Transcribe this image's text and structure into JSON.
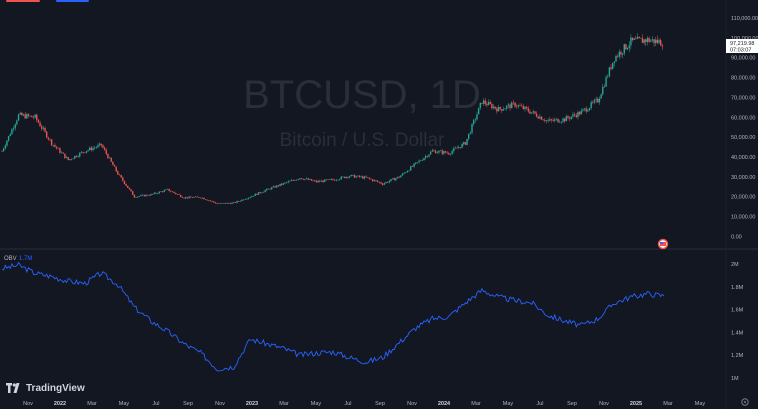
{
  "colors": {
    "background": "#131722",
    "grid": "#1e2230",
    "candle_up": "#26a69a",
    "candle_down": "#ef5350",
    "obv_line": "#2962ff",
    "axis_text": "#b2b5be",
    "watermark": "#2a2e39"
  },
  "watermark": {
    "symbol": "BTCUSD, 1D",
    "description": "Bitcoin / U.S. Dollar"
  },
  "price_tag": {
    "price": "97,219.98",
    "countdown": "07:03:07"
  },
  "branding": {
    "logo_text": "TradingView"
  },
  "icons": [
    "tradingview-logo-icon",
    "us-flag-icon",
    "settings-icon"
  ],
  "chart_data": [
    {
      "type": "candlestick",
      "title": "BTCUSD, 1D",
      "subtitle": "Bitcoin / U.S. Dollar",
      "ylim": [
        0,
        110000
      ],
      "yticks": [
        {
          "value": 110000,
          "label": "110,000.00"
        },
        {
          "value": 100000,
          "label": "100,000.00"
        },
        {
          "value": 90000,
          "label": "90,000.00"
        },
        {
          "value": 80000,
          "label": "80,000.00"
        },
        {
          "value": 70000,
          "label": "70,000.00"
        },
        {
          "value": 60000,
          "label": "60,000.00"
        },
        {
          "value": 50000,
          "label": "50,000.00"
        },
        {
          "value": 40000,
          "label": "40,000.00"
        },
        {
          "value": 30000,
          "label": "30,000.00"
        },
        {
          "value": 20000,
          "label": "20,000.00"
        },
        {
          "value": 10000,
          "label": "10,000.00"
        },
        {
          "value": 0,
          "label": "0.00"
        }
      ],
      "grid": false,
      "last_price": 97219.98,
      "series": [
        {
          "x": [
            "2021-10",
            "2021-11",
            "2021-12",
            "2022-01",
            "2022-02",
            "2022-03",
            "2022-04",
            "2022-05",
            "2022-06",
            "2022-07",
            "2022-08",
            "2022-09",
            "2022-10",
            "2022-11",
            "2022-12",
            "2023-01",
            "2023-02",
            "2023-03",
            "2023-04",
            "2023-05",
            "2023-06",
            "2023-07",
            "2023-08",
            "2023-09",
            "2023-10",
            "2023-11",
            "2023-12",
            "2024-01",
            "2024-02",
            "2024-03",
            "2024-04",
            "2024-05",
            "2024-06",
            "2024-07",
            "2024-08",
            "2024-09",
            "2024-10",
            "2024-11",
            "2024-12",
            "2025-01",
            "2025-02"
          ],
          "values": [
            43000,
            61000,
            60000,
            47000,
            38500,
            43000,
            46000,
            31500,
            20000,
            21000,
            23500,
            19500,
            19700,
            16500,
            16800,
            20000,
            23500,
            26500,
            29500,
            27500,
            28500,
            30500,
            29500,
            26500,
            30000,
            36500,
            43000,
            42000,
            47000,
            68000,
            64000,
            66500,
            62500,
            58000,
            59000,
            62500,
            68500,
            90000,
            98000,
            99000,
            97500
          ]
        }
      ]
    },
    {
      "type": "line",
      "legend_name": "OBV",
      "legend_value": "1.7M",
      "ylim": [
        0.85,
        2.1
      ],
      "yticks": [
        {
          "value": 2.0,
          "label": "2M"
        },
        {
          "value": 1.8,
          "label": "1.8M"
        },
        {
          "value": 1.6,
          "label": "1.6M"
        },
        {
          "value": 1.4,
          "label": "1.4M"
        },
        {
          "value": 1.2,
          "label": "1.2M"
        },
        {
          "value": 1.0,
          "label": "1M"
        }
      ],
      "x_tick_labels": [
        "Nov",
        "2022",
        "Mar",
        "May",
        "Jul",
        "Sep",
        "Nov",
        "2023",
        "Mar",
        "May",
        "Jul",
        "Sep",
        "Nov",
        "2024",
        "Mar",
        "May",
        "Jul",
        "Sep",
        "Nov",
        "2025",
        "Mar",
        "May"
      ],
      "series": [
        {
          "name": "OBV",
          "x": [
            "2021-10",
            "2021-11",
            "2021-12",
            "2022-01",
            "2022-02",
            "2022-03",
            "2022-04",
            "2022-05",
            "2022-06",
            "2022-07",
            "2022-08",
            "2022-09",
            "2022-10",
            "2022-11",
            "2022-12",
            "2023-01",
            "2023-02",
            "2023-03",
            "2023-04",
            "2023-05",
            "2023-06",
            "2023-07",
            "2023-08",
            "2023-09",
            "2023-10",
            "2023-11",
            "2023-12",
            "2024-01",
            "2024-02",
            "2024-03",
            "2024-04",
            "2024-05",
            "2024-06",
            "2024-07",
            "2024-08",
            "2024-09",
            "2024-10",
            "2024-11",
            "2024-12",
            "2025-01",
            "2025-02"
          ],
          "values": [
            1.96,
            1.99,
            1.92,
            1.89,
            1.85,
            1.83,
            1.92,
            1.82,
            1.62,
            1.5,
            1.41,
            1.3,
            1.22,
            1.08,
            1.1,
            1.34,
            1.3,
            1.26,
            1.2,
            1.22,
            1.23,
            1.18,
            1.14,
            1.18,
            1.31,
            1.44,
            1.52,
            1.54,
            1.66,
            1.77,
            1.71,
            1.68,
            1.66,
            1.55,
            1.5,
            1.46,
            1.52,
            1.66,
            1.71,
            1.74,
            1.72
          ]
        }
      ]
    }
  ]
}
